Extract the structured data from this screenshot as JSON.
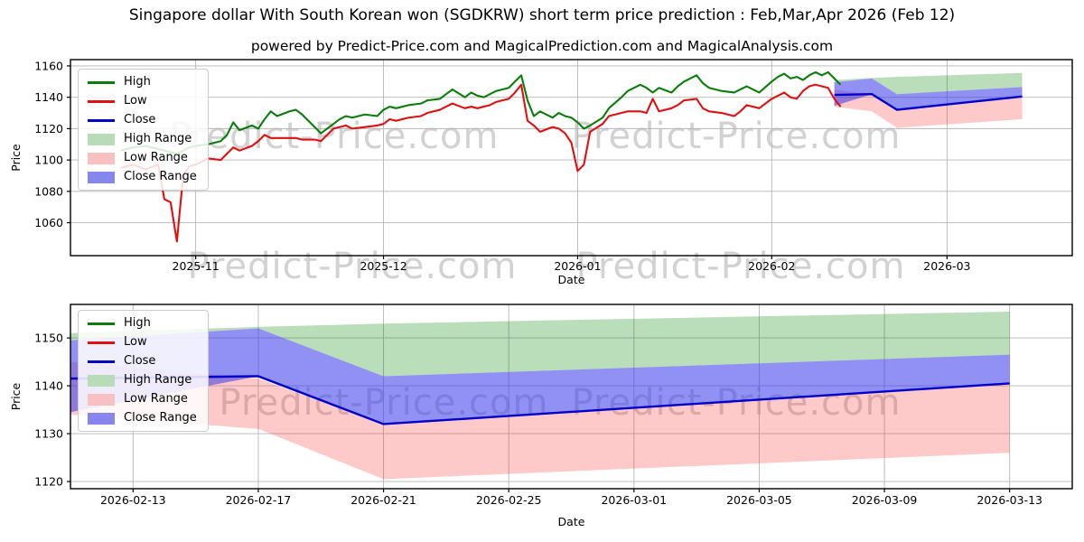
{
  "title": "Singapore dollar With South Korean won (SGDKRW) short term price prediction : Feb,Mar,Apr 2026 (Feb 12)",
  "subtitle": "powered by Predict-Price.com and MagicalPrediction.com and MagicalAnalysis.com",
  "watermark_text": "Predict-Price.com",
  "colors": {
    "high_line": "#0a7d0a",
    "low_line": "#e01010",
    "close_line": "#0000cc",
    "high_range_fill": "rgba(0,128,0,0.27)",
    "low_range_fill": "rgba(250,45,45,0.26)",
    "close_range_fill": "rgba(55,55,235,0.55)",
    "high_range_swatch": "#b8dcb8",
    "low_range_swatch": "#f8c0c0",
    "close_range_swatch": "#8686ee",
    "grid": "#b5b5b5",
    "frame": "#000000",
    "watermark": "#d2d2d2"
  },
  "legend": [
    {
      "label": "High",
      "swatch": "line",
      "color_key": "high_line"
    },
    {
      "label": "Low",
      "swatch": "line",
      "color_key": "low_line"
    },
    {
      "label": "Close",
      "swatch": "line",
      "color_key": "close_line"
    },
    {
      "label": "High Range",
      "swatch": "patch",
      "color_key": "high_range_swatch"
    },
    {
      "label": "Low Range",
      "swatch": "patch",
      "color_key": "low_range_swatch"
    },
    {
      "label": "Close Range",
      "swatch": "patch",
      "color_key": "close_range_swatch"
    }
  ],
  "chart_data": [
    {
      "type": "line",
      "title": "",
      "xlabel": "Date",
      "ylabel": "Price",
      "legend_position": "upper left",
      "grid": true,
      "x_range": [
        "2025-10-12",
        "2026-03-21"
      ],
      "y_range": [
        1039,
        1164
      ],
      "y_ticks": [
        1060,
        1080,
        1100,
        1120,
        1140,
        1160
      ],
      "x_ticks": [
        {
          "label": "2025-11",
          "date": "2025-11-01"
        },
        {
          "label": "2025-12",
          "date": "2025-12-01"
        },
        {
          "label": "2026-01",
          "date": "2026-01-01"
        },
        {
          "label": "2026-02",
          "date": "2026-02-01"
        },
        {
          "label": "2026-03",
          "date": "2026-03-01"
        }
      ],
      "history": {
        "dates": [
          "2025-10-20",
          "2025-10-22",
          "2025-10-24",
          "2025-10-26",
          "2025-10-27",
          "2025-10-28",
          "2025-10-29",
          "2025-10-30",
          "2025-10-31",
          "2025-11-01",
          "2025-11-03",
          "2025-11-05",
          "2025-11-06",
          "2025-11-07",
          "2025-11-08",
          "2025-11-10",
          "2025-11-11",
          "2025-11-12",
          "2025-11-13",
          "2025-11-14",
          "2025-11-16",
          "2025-11-17",
          "2025-11-18",
          "2025-11-19",
          "2025-11-20",
          "2025-11-21",
          "2025-11-23",
          "2025-11-24",
          "2025-11-25",
          "2025-11-26",
          "2025-11-28",
          "2025-11-30",
          "2025-12-01",
          "2025-12-02",
          "2025-12-03",
          "2025-12-05",
          "2025-12-07",
          "2025-12-08",
          "2025-12-10",
          "2025-12-11",
          "2025-12-12",
          "2025-12-14",
          "2025-12-15",
          "2025-12-16",
          "2025-12-17",
          "2025-12-18",
          "2025-12-19",
          "2025-12-21",
          "2025-12-22",
          "2025-12-23",
          "2025-12-24",
          "2025-12-25",
          "2025-12-26",
          "2025-12-28",
          "2025-12-29",
          "2025-12-30",
          "2025-12-31",
          "2026-01-01",
          "2026-01-02",
          "2026-01-03",
          "2026-01-05",
          "2026-01-06",
          "2026-01-08",
          "2026-01-09",
          "2026-01-11",
          "2026-01-12",
          "2026-01-13",
          "2026-01-14",
          "2026-01-16",
          "2026-01-17",
          "2026-01-18",
          "2026-01-20",
          "2026-01-21",
          "2026-01-22",
          "2026-01-24",
          "2026-01-26",
          "2026-01-27",
          "2026-01-28",
          "2026-01-30",
          "2026-02-01",
          "2026-02-02",
          "2026-02-03",
          "2026-02-04",
          "2026-02-05",
          "2026-02-06",
          "2026-02-07",
          "2026-02-08",
          "2026-02-09",
          "2026-02-10",
          "2026-02-11",
          "2026-02-12"
        ],
        "high": [
          1106,
          1108,
          1109,
          1107,
          1106,
          1105,
          1104,
          1106,
          1108,
          1109,
          1110,
          1112,
          1116,
          1124,
          1119,
          1122,
          1120,
          1126,
          1131,
          1128,
          1131,
          1132,
          1129,
          1125,
          1121,
          1117,
          1123,
          1126,
          1128,
          1127,
          1129,
          1128,
          1132,
          1134,
          1133,
          1135,
          1136,
          1138,
          1139,
          1142,
          1145,
          1140,
          1143,
          1141,
          1140,
          1142,
          1144,
          1146,
          1150,
          1154,
          1138,
          1128,
          1131,
          1127,
          1130,
          1128,
          1127,
          1124,
          1120,
          1122,
          1127,
          1133,
          1140,
          1144,
          1148,
          1146,
          1143,
          1146,
          1143,
          1147,
          1150,
          1154,
          1149,
          1146,
          1144,
          1143,
          1145,
          1147,
          1143,
          1150,
          1153,
          1155,
          1152,
          1153,
          1151,
          1154,
          1156,
          1154,
          1156,
          1152,
          1148
        ],
        "low": [
          1095,
          1097,
          1094,
          1097,
          1075,
          1073,
          1048,
          1090,
          1096,
          1097,
          1101,
          1100,
          1104,
          1108,
          1106,
          1109,
          1112,
          1116,
          1114,
          1114,
          1114,
          1114,
          1113,
          1113,
          1113,
          1112,
          1120,
          1121,
          1122,
          1120,
          1121,
          1122,
          1123,
          1126,
          1125,
          1127,
          1128,
          1130,
          1132,
          1134,
          1136,
          1133,
          1134,
          1133,
          1134,
          1135,
          1137,
          1139,
          1143,
          1148,
          1125,
          1122,
          1118,
          1121,
          1120,
          1117,
          1111,
          1093,
          1097,
          1118,
          1123,
          1128,
          1130,
          1131,
          1131,
          1130,
          1139,
          1131,
          1133,
          1135,
          1138,
          1139,
          1133,
          1131,
          1130,
          1128,
          1131,
          1135,
          1133,
          1139,
          1141,
          1143,
          1140,
          1139,
          1144,
          1147,
          1148,
          1147,
          1146,
          1139,
          1134
        ]
      },
      "prediction": {
        "dates": [
          "2026-02-11",
          "2026-02-17",
          "2026-02-21",
          "2026-03-13"
        ],
        "close": [
          1141.5,
          1142,
          1132,
          1140.5
        ],
        "close_min": [
          1134.5,
          1142,
          1132,
          1140.5
        ],
        "close_max": [
          1149.5,
          1152,
          1142,
          1146.5
        ],
        "high_max": [
          1151,
          1152.3,
          1153,
          1155.5
        ],
        "low_max": [
          1145,
          1141.5,
          1132,
          1140.5
        ],
        "low_min": [
          1134,
          1131,
          1120.5,
          1126
        ]
      }
    },
    {
      "type": "line",
      "title": "",
      "xlabel": "Date",
      "ylabel": "Price",
      "legend_position": "upper left",
      "grid": true,
      "x_range": [
        "2026-02-11",
        "2026-03-15"
      ],
      "y_range": [
        1118.5,
        1157
      ],
      "y_ticks": [
        1120,
        1130,
        1140,
        1150
      ],
      "x_ticks": [
        {
          "label": "2026-02-13",
          "date": "2026-02-13"
        },
        {
          "label": "2026-02-17",
          "date": "2026-02-17"
        },
        {
          "label": "2026-02-21",
          "date": "2026-02-21"
        },
        {
          "label": "2026-02-25",
          "date": "2026-02-25"
        },
        {
          "label": "2026-03-01",
          "date": "2026-03-01"
        },
        {
          "label": "2026-03-05",
          "date": "2026-03-05"
        },
        {
          "label": "2026-03-09",
          "date": "2026-03-09"
        },
        {
          "label": "2026-03-13",
          "date": "2026-03-13"
        }
      ],
      "prediction": {
        "dates": [
          "2026-02-11",
          "2026-02-17",
          "2026-02-21",
          "2026-03-13"
        ],
        "close": [
          1141.5,
          1142,
          1132,
          1140.5
        ],
        "close_min": [
          1134.5,
          1142,
          1132,
          1140.5
        ],
        "close_max": [
          1149.5,
          1152,
          1142,
          1146.5
        ],
        "high_max": [
          1151,
          1152.3,
          1153,
          1155.5
        ],
        "low_max": [
          1145,
          1141.5,
          1132,
          1140.5
        ],
        "low_min": [
          1134,
          1131,
          1120.5,
          1126
        ]
      }
    }
  ]
}
